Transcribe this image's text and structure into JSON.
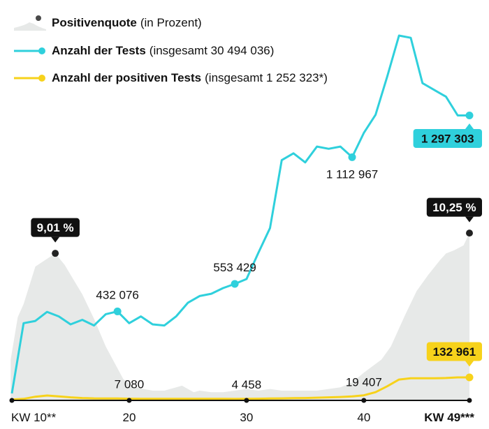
{
  "legend": {
    "positive_rate": {
      "name": "Positivenquote",
      "detail": "(in Prozent)"
    },
    "tests": {
      "name": "Anzahl der Tests",
      "detail": "(insgesamt 30 494 036)"
    },
    "positive_tests": {
      "name": "Anzahl der positiven Tests",
      "detail": "(insgesamt 1 252 323*)"
    }
  },
  "colors": {
    "tests": "#2fd0dc",
    "positive": "#f7d21b",
    "rate_area": "#e7e9e8",
    "axis": "#111111"
  },
  "chart_data": {
    "type": "line",
    "x_unit": "KW",
    "x": [
      10,
      11,
      12,
      13,
      14,
      15,
      16,
      17,
      18,
      19,
      20,
      21,
      22,
      23,
      24,
      25,
      26,
      27,
      28,
      29,
      30,
      31,
      32,
      33,
      34,
      35,
      36,
      37,
      38,
      39,
      40,
      41,
      42,
      43,
      44,
      45,
      46,
      47,
      48,
      49
    ],
    "x_ticks": [
      {
        "x": 10,
        "label": "KW 10**",
        "bold": false
      },
      {
        "x": 20,
        "label": "20",
        "bold": false
      },
      {
        "x": 30,
        "label": "30",
        "bold": false
      },
      {
        "x": 40,
        "label": "40",
        "bold": false
      },
      {
        "x": 49,
        "label": "KW 49***",
        "bold": true
      }
    ],
    "series": [
      {
        "name": "Anzahl der Tests",
        "key": "tests",
        "type": "line",
        "values": [
          70000,
          380000,
          390000,
          430000,
          410000,
          375000,
          395000,
          370000,
          420000,
          432076,
          380000,
          410000,
          375000,
          370000,
          410000,
          470000,
          500000,
          510000,
          535000,
          553429,
          575000,
          690000,
          800000,
          1100000,
          1130000,
          1090000,
          1160000,
          1150000,
          1160000,
          1112967,
          1220000,
          1300000,
          1470000,
          1650000,
          1640000,
          1440000,
          1410000,
          1380000,
          1297303,
          1297303
        ],
        "x": [
          10,
          11,
          12,
          13,
          14,
          15,
          16,
          17,
          18,
          19,
          20,
          21,
          22,
          23,
          24,
          25,
          26,
          27,
          28,
          29,
          30,
          31,
          32,
          33,
          34,
          35,
          36,
          37,
          38,
          39,
          40,
          41,
          42,
          43,
          44,
          45,
          46,
          47,
          48,
          49
        ]
      },
      {
        "name": "Anzahl der positiven Tests",
        "key": "positive",
        "type": "line",
        "values": [
          1000,
          5000,
          18000,
          25000,
          20000,
          14000,
          10000,
          8000,
          7500,
          7080,
          6000,
          5000,
          5000,
          5000,
          5000,
          5000,
          5000,
          5000,
          5000,
          4458,
          5000,
          6000,
          7000,
          8000,
          9000,
          10000,
          12000,
          14000,
          16000,
          19407,
          26000,
          45000,
          80000,
          120000,
          128000,
          128000,
          128000,
          129000,
          132961,
          132961
        ],
        "x": [
          10,
          11,
          12,
          13,
          14,
          15,
          16,
          17,
          18,
          19,
          20,
          21,
          22,
          23,
          24,
          25,
          26,
          27,
          28,
          29,
          30,
          31,
          32,
          33,
          34,
          35,
          36,
          37,
          38,
          39,
          40,
          41,
          42,
          43,
          44,
          45,
          46,
          47,
          48,
          49
        ]
      },
      {
        "name": "Positivenquote",
        "key": "rate",
        "type": "area",
        "unit": "%",
        "values": [
          2.5,
          5.1,
          5.9,
          8.2,
          9.01,
          8.3,
          6.5,
          5.0,
          3.3,
          1.3,
          0.8,
          0.6,
          0.6,
          0.9,
          0.5,
          0.6,
          0.5,
          0.5,
          0.6,
          0.7,
          0.6,
          0.7,
          0.6,
          0.6,
          0.6,
          0.6,
          0.7,
          0.8,
          1.1,
          1.7,
          2.5,
          3.3,
          5.2,
          6.7,
          7.7,
          8.6,
          9.0,
          9.2,
          9.5,
          10.25
        ],
        "x": [
          9.9,
          10.5,
          11,
          12,
          13.7,
          14.5,
          16,
          17,
          18,
          19.5,
          20.5,
          22,
          23,
          24.5,
          25.5,
          26,
          27,
          28,
          29,
          30,
          31,
          32,
          33,
          34,
          35,
          36,
          37,
          38,
          39,
          40,
          41.5,
          42.3,
          43.5,
          44.5,
          45.5,
          46.5,
          47,
          47.7,
          48.5,
          49
        ]
      }
    ],
    "annotations": [
      {
        "series": "rate",
        "x": 13.7,
        "value": 9.01,
        "label": "9,01 %",
        "style": "badge-dark"
      },
      {
        "series": "rate",
        "x": 49,
        "value": 10.25,
        "label": "10,25 %",
        "style": "badge-dark"
      },
      {
        "series": "tests",
        "x": 19,
        "value": 432076,
        "label": "432 076",
        "style": "marker"
      },
      {
        "series": "tests",
        "x": 29,
        "value": 553429,
        "label": "553 429",
        "style": "marker"
      },
      {
        "series": "tests",
        "x": 39,
        "value": 1112967,
        "label": "1 112 967",
        "style": "marker"
      },
      {
        "series": "tests",
        "x": 49,
        "value": 1297303,
        "label": "1 297 303",
        "style": "badge-cyan"
      },
      {
        "series": "positive",
        "x": 20,
        "value": 7080,
        "label": "7 080",
        "style": "tick"
      },
      {
        "series": "positive",
        "x": 30,
        "value": 4458,
        "label": "4 458",
        "style": "tick"
      },
      {
        "series": "positive",
        "x": 40,
        "value": 19407,
        "label": "19 407",
        "style": "tick"
      },
      {
        "series": "positive",
        "x": 49,
        "value": 132961,
        "label": "132 961",
        "style": "badge-yellow"
      }
    ],
    "grid": false,
    "legend_position": "top-left"
  }
}
